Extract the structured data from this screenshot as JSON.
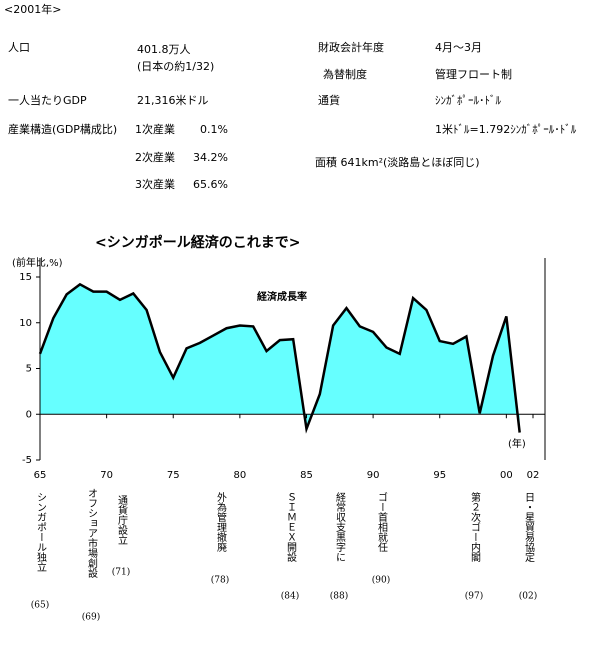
{
  "header": "<2001年>",
  "info": {
    "population_label": "人口",
    "population": "401.8万人",
    "population_note": "(日本の約1/32)",
    "gdp_label": "一人当たりGDP",
    "gdp": "21,316米ドル",
    "industry_label": "産業構造(GDP構成比)",
    "industry": [
      {
        "name": "1次産業",
        "share": "0.1%"
      },
      {
        "name": "2次産業",
        "share": "34.2%"
      },
      {
        "name": "3次産業",
        "share": "65.6%"
      }
    ],
    "fiscal_label": "財政会計年度",
    "fiscal": "4月～3月",
    "fx_label": "為替制度",
    "fx": "管理フロート制",
    "currency_label": "通貨",
    "currency": "ｼﾝｶﾞﾎﾟｰﾙ･ﾄﾞﾙ",
    "rate": "1米ﾄﾞﾙ=1.792ｼﾝｶﾞﾎﾟｰﾙ･ﾄﾞﾙ",
    "area": "面積 641km²(淡路島とほぼ同じ)"
  },
  "chart_data": {
    "type": "area",
    "title": "<シンガポール経済のこれまで>",
    "y_label": "(前年比,%)",
    "x_label": "(年)",
    "x": [
      1965,
      1966,
      1967,
      1968,
      1969,
      1970,
      1971,
      1972,
      1973,
      1974,
      1975,
      1976,
      1977,
      1978,
      1979,
      1980,
      1981,
      1982,
      1983,
      1984,
      1985,
      1986,
      1987,
      1988,
      1989,
      1990,
      1991,
      1992,
      1993,
      1994,
      1995,
      1996,
      1997,
      1998,
      1999,
      2000,
      2001
    ],
    "series": [
      {
        "name": "経済成長率",
        "color": "#66ffff",
        "values": [
          6.6,
          10.5,
          13.1,
          14.2,
          13.4,
          13.4,
          12.5,
          13.2,
          11.4,
          6.8,
          4.0,
          7.2,
          7.8,
          8.6,
          9.4,
          9.7,
          9.6,
          6.9,
          8.1,
          8.2,
          -1.6,
          2.2,
          9.7,
          11.6,
          9.6,
          9.0,
          7.3,
          6.6,
          12.7,
          11.4,
          8.0,
          7.7,
          8.5,
          0.1,
          6.4,
          10.7,
          -2.0
        ]
      }
    ],
    "xlim": [
      1965,
      2002
    ],
    "ylim": [
      -5,
      15
    ],
    "yticks": [
      -5,
      0,
      5,
      10,
      15
    ],
    "xticks": [
      {
        "value": 1965,
        "label": "65"
      },
      {
        "value": 1970,
        "label": "70"
      },
      {
        "value": 1975,
        "label": "75"
      },
      {
        "value": 1980,
        "label": "80"
      },
      {
        "value": 1985,
        "label": "85"
      },
      {
        "value": 1990,
        "label": "90"
      },
      {
        "value": 1995,
        "label": "95"
      },
      {
        "value": 2000,
        "label": "00"
      },
      {
        "value": 2002,
        "label": "02"
      }
    ],
    "events": [
      {
        "text": "シンガポール独立",
        "year": "(65)"
      },
      {
        "text": "オフショア市場創設",
        "year": "(69)"
      },
      {
        "text": "通貨庁設立",
        "year": "(71)"
      },
      {
        "text": "外為管理撤廃",
        "year": "(78)"
      },
      {
        "text": "ＳＩＭＥＸ開設",
        "year": "(84)"
      },
      {
        "text": "経常収支黒字に",
        "year": "(88)"
      },
      {
        "text": "ゴー首相就任",
        "year": "(90)"
      },
      {
        "text": "第２次ゴー内閣",
        "year": "(97)"
      },
      {
        "text": "日・星貿易協定",
        "year": "(02)"
      }
    ]
  }
}
